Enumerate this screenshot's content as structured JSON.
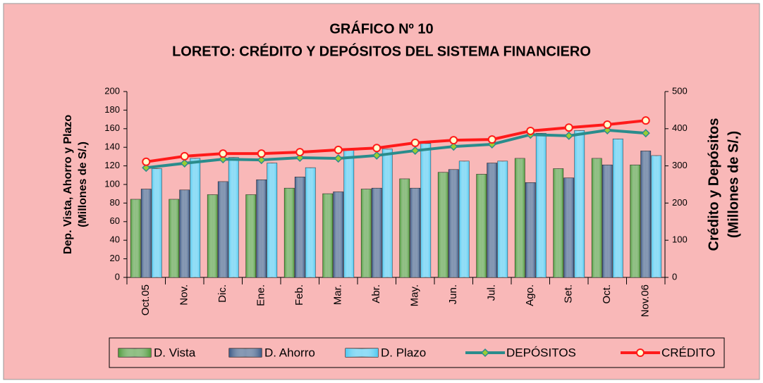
{
  "chart_data": {
    "type": "bar_line",
    "title": "GRÁFICO Nº 10",
    "subtitle": "LORETO: CRÉDITO Y DEPÓSITOS DEL SISTEMA FINANCIERO",
    "y_label": [
      "Dep. Vista, Ahorro y Plazo",
      "(Millones de S/.)"
    ],
    "y2_label": [
      "Crédito y  Depósitos",
      "(Millones de S/.)"
    ],
    "categories": [
      "Oct.05",
      "Nov.",
      "Dic.",
      "Ene.",
      "Feb.",
      "Mar.",
      "Abr.",
      "May.",
      "Jun.",
      "Jul.",
      "Ago.",
      "Set.",
      "Oct.",
      "Nov.06"
    ],
    "series": [
      {
        "name": "D. Vista",
        "kind": "bar",
        "color": "#4f9a3c",
        "values": [
          84,
          84,
          89,
          89,
          96,
          90,
          95,
          106,
          113,
          111,
          128,
          117,
          128,
          121
        ]
      },
      {
        "name": "D. Ahorro",
        "kind": "bar",
        "color": "#3c5a86",
        "values": [
          95,
          94,
          103,
          105,
          108,
          92,
          96,
          96,
          116,
          123,
          102,
          107,
          121,
          136
        ]
      },
      {
        "name": "D. Plazo",
        "kind": "bar",
        "color": "#4fc8f0",
        "values": [
          117,
          128,
          129,
          123,
          118,
          137,
          138,
          144,
          125,
          125,
          155,
          158,
          149,
          131
        ]
      },
      {
        "name": "DEPÓSITOS",
        "kind": "line",
        "axis": "y2",
        "color": "#2a8c8c",
        "marker_color": "#9acd32",
        "values": [
          295,
          307,
          318,
          316,
          322,
          320,
          328,
          341,
          352,
          358,
          384,
          381,
          396,
          388
        ]
      },
      {
        "name": "CRÉDITO",
        "kind": "line",
        "axis": "y2",
        "color": "#ff1a1a",
        "marker_color": "#ffffcc",
        "values": [
          311,
          326,
          333,
          333,
          337,
          343,
          348,
          362,
          369,
          371,
          394,
          403,
          411,
          422
        ]
      }
    ],
    "ylim": [
      0,
      200
    ],
    "yticks": [
      0,
      20,
      40,
      60,
      80,
      100,
      120,
      140,
      160,
      180,
      200
    ],
    "y2lim": [
      0,
      500
    ],
    "y2ticks": [
      0,
      100,
      200,
      300,
      400,
      500
    ],
    "background": "#f9b8b8",
    "grid": false,
    "legend": "bottom"
  }
}
